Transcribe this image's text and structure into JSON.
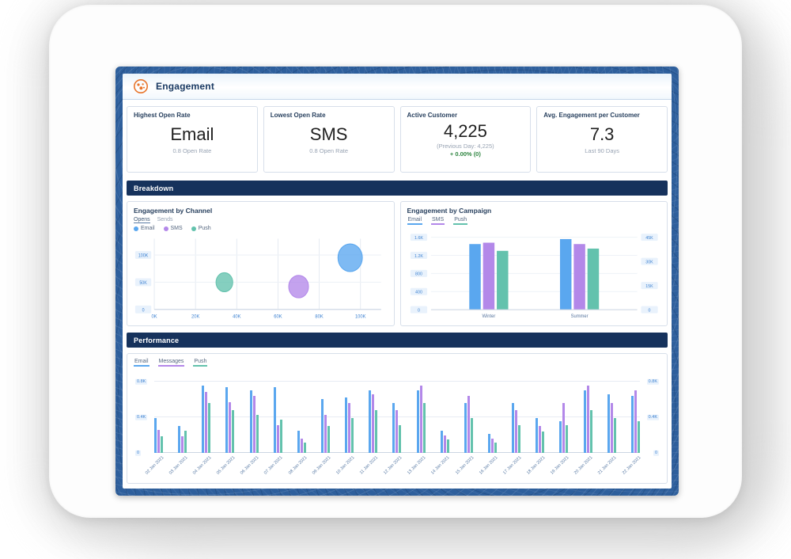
{
  "header": {
    "title": "Engagement"
  },
  "kpi_cards": [
    {
      "label": "Highest Open Rate",
      "value": "Email",
      "sub": "0.8 Open Rate",
      "delta": ""
    },
    {
      "label": "Lowest Open Rate",
      "value": "SMS",
      "sub": "0.8 Open Rate",
      "delta": ""
    },
    {
      "label": "Active Customer",
      "value": "4,225",
      "sub": "(Previous Day: 4,225)",
      "delta": "+ 0.00% (0)"
    },
    {
      "label": "Avg. Engagement per Customer",
      "value": "7.3",
      "sub": "Last 90 Days",
      "delta": ""
    }
  ],
  "sections": {
    "breakdown": "Breakdown",
    "performance": "Performance"
  },
  "colors": {
    "email": "#5aa7ef",
    "sms": "#b388e9",
    "push": "#63c2ad",
    "messages": "#b388e9",
    "navy": "#16325c",
    "green": "#2e8540",
    "axis": "#3f83d2",
    "accent_orange": "#e8742a"
  },
  "chart_data": [
    {
      "id": "engagement_by_channel",
      "type": "scatter",
      "title": "Engagement by Channel",
      "toggles": [
        "Opens",
        "Sends"
      ],
      "legend": [
        "Email",
        "SMS",
        "Push"
      ],
      "x_ticks": [
        "0K",
        "20K",
        "40K",
        "60K",
        "80K",
        "100K"
      ],
      "x_tick_values": [
        0,
        20000,
        40000,
        60000,
        80000,
        100000
      ],
      "y_ticks": [
        "0",
        "50K",
        "100K"
      ],
      "y_tick_values": [
        0,
        50000,
        100000
      ],
      "xlim": [
        0,
        110000
      ],
      "ylim": [
        0,
        130000
      ],
      "points": [
        {
          "series": "Push",
          "x": 34000,
          "y": 50000,
          "r": 11
        },
        {
          "series": "SMS",
          "x": 70000,
          "y": 42000,
          "r": 13
        },
        {
          "series": "Email",
          "x": 95000,
          "y": 95000,
          "r": 16
        }
      ]
    },
    {
      "id": "engagement_by_campaign",
      "type": "bar",
      "title": "Engagement by Campaign",
      "legend": [
        "Email",
        "SMS",
        "Push"
      ],
      "categories": [
        "Winter",
        "Summer"
      ],
      "series": [
        {
          "name": "Email",
          "values": [
            1450,
            1560
          ]
        },
        {
          "name": "SMS",
          "values": [
            1480,
            1450
          ]
        },
        {
          "name": "Push",
          "values": [
            1300,
            1350
          ]
        }
      ],
      "y_ticks_left": [
        "0",
        "400",
        "800",
        "1.2K",
        "1.6K"
      ],
      "y_tick_values_left": [
        0,
        400,
        800,
        1200,
        1600
      ],
      "y_ticks_right": [
        "0",
        "15K",
        "30K",
        "45K"
      ],
      "y_tick_values_right": [
        0,
        15000,
        30000,
        45000
      ],
      "ylim": [
        0,
        1700
      ],
      "right_max": 47800
    },
    {
      "id": "performance",
      "type": "bar",
      "legend": [
        "Email",
        "Messages",
        "Push"
      ],
      "categories": [
        "02 Jan 2021",
        "03 Jan 2021",
        "04 Jan 2021",
        "05 Jan 2021",
        "06 Jan 2021",
        "07 Jan 2021",
        "08 Jan 2021",
        "09 Jan 2021",
        "10 Jan 2021",
        "11 Jan 2021",
        "12 Jan 2021",
        "13 Jan 2021",
        "14 Jan 2021",
        "15 Jan 2021",
        "16 Jan 2021",
        "17 Jan 2021",
        "18 Jan 2021",
        "19 Jan 2021",
        "20 Jan 2021",
        "21 Jan 2021",
        "22 Jan 2021"
      ],
      "series": [
        {
          "name": "Email",
          "values": [
            390,
            300,
            760,
            740,
            700,
            740,
            250,
            610,
            620,
            700,
            560,
            700,
            250,
            560,
            210,
            560,
            390,
            360,
            700,
            660,
            640
          ]
        },
        {
          "name": "Messages",
          "values": [
            260,
            190,
            690,
            570,
            640,
            310,
            160,
            430,
            560,
            660,
            480,
            760,
            200,
            640,
            160,
            480,
            300,
            560,
            760,
            560,
            700
          ]
        },
        {
          "name": "Push",
          "values": [
            190,
            250,
            560,
            480,
            430,
            370,
            120,
            300,
            390,
            480,
            310,
            560,
            150,
            390,
            120,
            310,
            240,
            310,
            480,
            390,
            360
          ]
        }
      ],
      "y_ticks_left": [
        "0",
        "0.4K",
        "0.8K"
      ],
      "y_tick_values_left": [
        0,
        400,
        800
      ],
      "y_ticks_right": [
        "0",
        "0.4K",
        "0.8K"
      ],
      "y_tick_values_right": [
        0,
        400,
        800
      ],
      "ylim": [
        0,
        900
      ]
    }
  ]
}
